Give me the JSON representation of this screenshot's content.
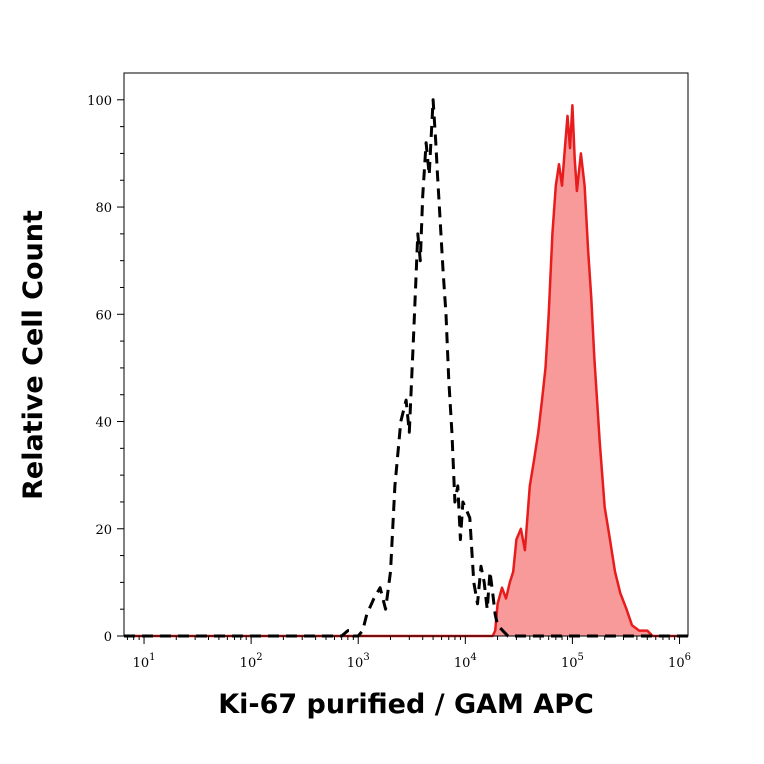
{
  "chart_data": {
    "type": "area",
    "xlabel": "Ki-67 purified / GAM APC",
    "ylabel": "Relative Cell Count",
    "x_scale": "log",
    "xlim": [
      6.5,
      1200000
    ],
    "ylim": [
      0,
      105
    ],
    "x_ticks": [
      {
        "base": "10",
        "exp": "1",
        "value": 10
      },
      {
        "base": "10",
        "exp": "2",
        "value": 100
      },
      {
        "base": "10",
        "exp": "3",
        "value": 1000
      },
      {
        "base": "10",
        "exp": "4",
        "value": 10000
      },
      {
        "base": "10",
        "exp": "5",
        "value": 100000
      },
      {
        "base": "10",
        "exp": "6",
        "value": 1000000
      }
    ],
    "y_ticks": [
      0,
      20,
      40,
      60,
      80,
      100
    ],
    "grid": false,
    "series": [
      {
        "style": "dashed-outline",
        "color": "#000000",
        "x": [
          6.5,
          100,
          700,
          800,
          850,
          900,
          1000,
          1100,
          1200,
          1400,
          1600,
          1800,
          2000,
          2200,
          2500,
          2800,
          3000,
          3300,
          3600,
          3800,
          4000,
          4300,
          4600,
          5000,
          5300,
          5500,
          5800,
          6200,
          6600,
          7000,
          7500,
          8000,
          8500,
          9000,
          9500,
          10000,
          11000,
          12000,
          13000,
          14000,
          15000,
          16000,
          17000,
          18000,
          19000,
          20000,
          25000,
          40000,
          1200000
        ],
        "y": [
          0,
          0,
          0,
          1,
          1,
          0,
          0,
          1,
          4,
          7,
          9,
          5,
          12,
          28,
          40,
          44,
          38,
          57,
          75,
          70,
          82,
          92,
          86,
          100,
          92,
          86,
          78,
          68,
          60,
          48,
          38,
          25,
          28,
          18,
          25,
          24,
          22,
          10,
          6,
          13,
          10,
          5,
          12,
          8,
          4,
          2,
          0,
          0,
          0
        ]
      },
      {
        "style": "filled",
        "color": "#e81c1c",
        "fill": "#f8999a",
        "x": [
          6.5,
          18000,
          19000,
          20000,
          22000,
          24000,
          26000,
          28000,
          30000,
          33000,
          36000,
          40000,
          44000,
          48000,
          52000,
          56000,
          60000,
          65000,
          70000,
          75000,
          80000,
          85000,
          90000,
          95000,
          100000,
          105000,
          110000,
          120000,
          130000,
          140000,
          150000,
          160000,
          180000,
          200000,
          220000,
          250000,
          280000,
          320000,
          360000,
          420000,
          500000,
          560000,
          600000,
          1200000
        ],
        "y": [
          0,
          0,
          1,
          6,
          9,
          7,
          10,
          12,
          18,
          20,
          16,
          28,
          33,
          38,
          44,
          50,
          60,
          75,
          84,
          88,
          84,
          91,
          97,
          91,
          99,
          89,
          83,
          90,
          84,
          72,
          63,
          52,
          36,
          24,
          19,
          12,
          8,
          5,
          2,
          1,
          1,
          0,
          0,
          0
        ]
      }
    ]
  }
}
